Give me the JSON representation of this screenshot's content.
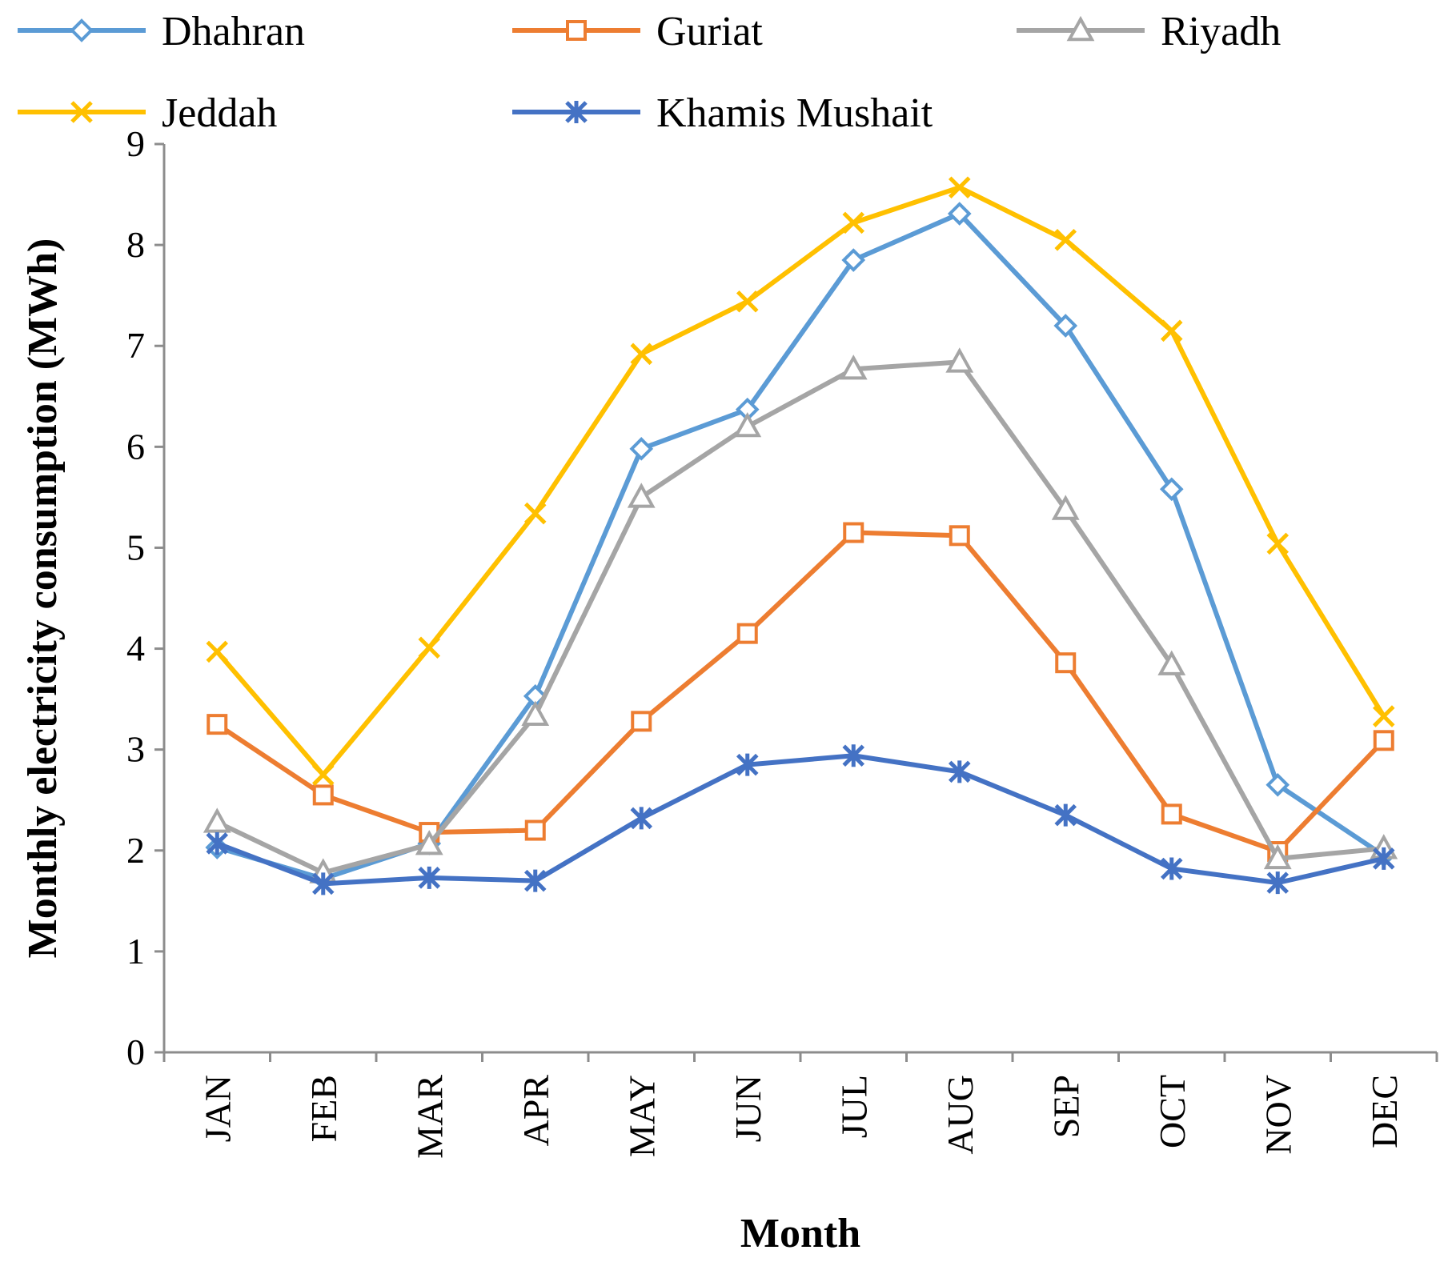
{
  "chart_data": {
    "type": "line",
    "title": "",
    "xlabel": "Month",
    "ylabel": "Monthly electricity consumption (MWh)",
    "ylim": [
      0,
      9
    ],
    "yticks": [
      "0",
      "1",
      "2",
      "3",
      "4",
      "5",
      "6",
      "7",
      "8",
      "9"
    ],
    "categories": [
      "JAN",
      "FEB",
      "MAR",
      "APR",
      "MAY",
      "JUN",
      "JUL",
      "AUG",
      "SEP",
      "OCT",
      "NOV",
      "DEC"
    ],
    "grid": false,
    "legend_position": "top",
    "series": [
      {
        "name": "Dhahran",
        "color": "#5B9BD5",
        "marker": "diamond",
        "values": [
          2.03,
          1.72,
          2.07,
          3.53,
          5.98,
          6.37,
          7.85,
          8.31,
          7.2,
          5.58,
          2.65,
          1.95
        ]
      },
      {
        "name": "Guriat",
        "color": "#ED7D31",
        "marker": "square",
        "values": [
          3.25,
          2.55,
          2.18,
          2.2,
          3.28,
          4.15,
          5.15,
          5.12,
          3.86,
          2.36,
          1.99,
          3.09
        ]
      },
      {
        "name": "Riyadh",
        "color": "#A5A5A5",
        "marker": "triangle",
        "values": [
          2.28,
          1.78,
          2.06,
          3.34,
          5.5,
          6.2,
          6.77,
          6.84,
          5.38,
          3.84,
          1.92,
          2.02
        ]
      },
      {
        "name": "Jeddah",
        "color": "#FFC000",
        "marker": "x",
        "values": [
          3.97,
          2.75,
          4.01,
          5.34,
          6.92,
          7.44,
          8.22,
          8.57,
          8.05,
          7.15,
          5.04,
          3.33
        ]
      },
      {
        "name": "Khamis Mushait",
        "color": "#4472C4",
        "marker": "asterisk",
        "values": [
          2.07,
          1.67,
          1.73,
          1.7,
          2.32,
          2.85,
          2.94,
          2.78,
          2.35,
          1.82,
          1.68,
          1.92
        ]
      }
    ]
  }
}
